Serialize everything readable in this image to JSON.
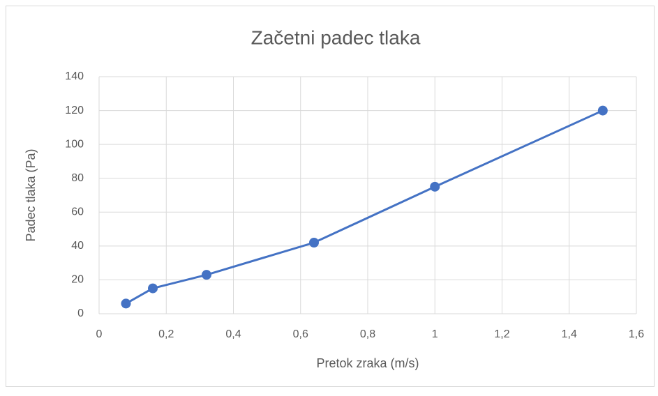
{
  "chart_data": {
    "type": "line",
    "title": "Začetni padec tlaka",
    "x_label": "Pretok zraka (m/s)",
    "y_label": "Padec tlaka (Pa)",
    "x": [
      0.08,
      0.16,
      0.32,
      0.64,
      1,
      1.5
    ],
    "series": [
      {
        "name": "Padec tlaka",
        "color": "#4472c4",
        "values": [
          6,
          15,
          23,
          42,
          75,
          120
        ]
      }
    ],
    "xlim": [
      0,
      1.6
    ],
    "xticks": [
      0,
      {
        "value": 0.2,
        "label": "0,2"
      },
      {
        "value": 0.4,
        "label": "0,4"
      },
      {
        "value": 0.6,
        "label": "0,6"
      },
      {
        "value": 0.8,
        "label": "0,8"
      },
      1,
      {
        "value": 1.2,
        "label": "1,2"
      },
      {
        "value": 1.4,
        "label": "1,4"
      },
      {
        "value": 1.6,
        "label": "1,6"
      }
    ],
    "ylim": [
      0,
      140
    ],
    "yticks": [
      0,
      20,
      40,
      60,
      80,
      100,
      120,
      140
    ],
    "grid": true
  }
}
